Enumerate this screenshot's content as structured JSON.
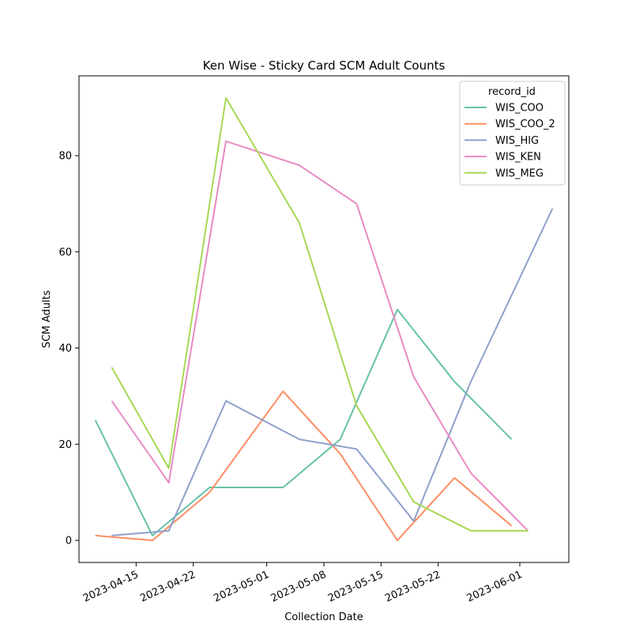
{
  "chart_data": {
    "type": "line",
    "title": "Ken Wise - Sticky Card SCM Adult Counts",
    "xlabel": "Collection Date",
    "ylabel": "SCM Adults",
    "x_ticks": [
      "2023-04-15",
      "2023-04-22",
      "2023-05-01",
      "2023-05-08",
      "2023-05-15",
      "2023-05-22",
      "2023-06-01"
    ],
    "y_ticks": [
      0,
      20,
      40,
      60,
      80
    ],
    "xlim": [
      "2023-04-08",
      "2023-06-07"
    ],
    "ylim": [
      -4.6,
      96.6
    ],
    "grid": false,
    "legend": {
      "title": "record_id",
      "position": "top-right"
    },
    "series": [
      {
        "name": "WIS_COO",
        "color": "#66c2a5",
        "points": [
          [
            "2023-04-10",
            25
          ],
          [
            "2023-04-17",
            1
          ],
          [
            "2023-04-24",
            11
          ],
          [
            "2023-05-03",
            11
          ],
          [
            "2023-05-10",
            21
          ],
          [
            "2023-05-17",
            48
          ],
          [
            "2023-05-24",
            33
          ],
          [
            "2023-05-31",
            21
          ]
        ]
      },
      {
        "name": "WIS_COO_2",
        "color": "#fc8d62",
        "points": [
          [
            "2023-04-10",
            1
          ],
          [
            "2023-04-17",
            0
          ],
          [
            "2023-04-24",
            10
          ],
          [
            "2023-05-03",
            31
          ],
          [
            "2023-05-10",
            18
          ],
          [
            "2023-05-17",
            0
          ],
          [
            "2023-05-24",
            13
          ],
          [
            "2023-05-31",
            3
          ]
        ]
      },
      {
        "name": "WIS_HIG",
        "color": "#8da0cb",
        "points": [
          [
            "2023-04-12",
            1
          ],
          [
            "2023-04-19",
            2
          ],
          [
            "2023-04-26",
            29
          ],
          [
            "2023-05-05",
            21
          ],
          [
            "2023-05-12",
            19
          ],
          [
            "2023-05-19",
            4
          ],
          [
            "2023-05-26",
            33
          ],
          [
            "2023-06-05",
            69
          ]
        ]
      },
      {
        "name": "WIS_KEN",
        "color": "#e78ac3",
        "points": [
          [
            "2023-04-12",
            29
          ],
          [
            "2023-04-19",
            12
          ],
          [
            "2023-04-26",
            83
          ],
          [
            "2023-05-05",
            78
          ],
          [
            "2023-05-12",
            70
          ],
          [
            "2023-05-19",
            34
          ],
          [
            "2023-05-26",
            14
          ],
          [
            "2023-06-02",
            2
          ]
        ]
      },
      {
        "name": "WIS_MEG",
        "color": "#a6d854",
        "points": [
          [
            "2023-04-12",
            36
          ],
          [
            "2023-04-19",
            15
          ],
          [
            "2023-04-26",
            92
          ],
          [
            "2023-05-05",
            66
          ],
          [
            "2023-05-12",
            28
          ],
          [
            "2023-05-19",
            8
          ],
          [
            "2023-05-26",
            2
          ],
          [
            "2023-06-02",
            2
          ]
        ]
      }
    ]
  }
}
